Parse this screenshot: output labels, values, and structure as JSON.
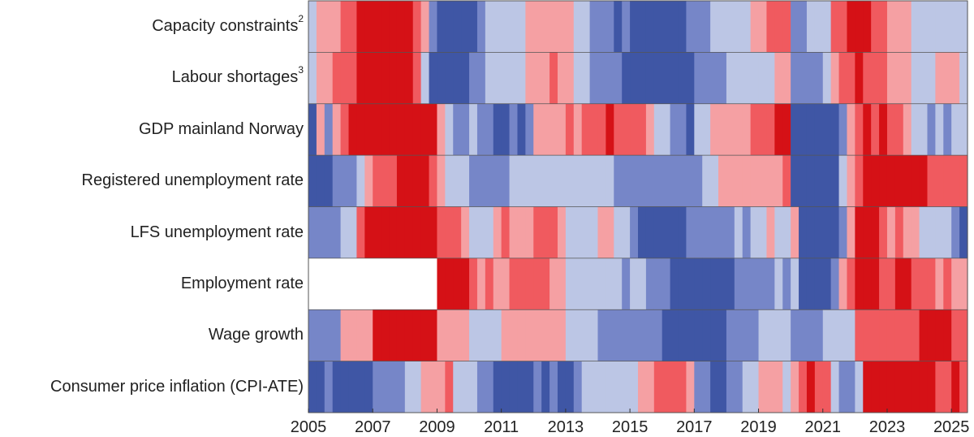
{
  "chart_data": {
    "type": "heatmap",
    "title": "",
    "x_start": "2005Q1",
    "x_end": "2025Q2",
    "frequency": "quarterly",
    "x_tick_labels": [
      "2005",
      "2007",
      "2009",
      "2011",
      "2013",
      "2015",
      "2017",
      "2019",
      "2021",
      "2023",
      "2025"
    ],
    "scale_levels": [
      -3,
      -2,
      -1,
      1,
      2,
      3
    ],
    "level_colors": {
      "-3": "#3f56a5",
      "-2": "#7686c8",
      "-1": "#bcc6e5",
      "1": "#f5a0a3",
      "2": "#f05a5f",
      "3": "#d51116",
      "null": "#ffffff"
    },
    "rows": [
      {
        "label": "Capacity  constraints",
        "sup": "2",
        "values": [
          -1,
          1,
          1,
          1,
          2,
          2,
          3,
          3,
          3,
          3,
          3,
          3,
          3,
          2,
          1,
          -2,
          -3,
          -3,
          -3,
          -3,
          -3,
          -2,
          -1,
          -1,
          -1,
          -1,
          -1,
          1,
          1,
          1,
          1,
          1,
          1,
          -1,
          -1,
          -2,
          -2,
          -2,
          -3,
          -2,
          -3,
          -3,
          -3,
          -3,
          -3,
          -3,
          -3,
          -2,
          -2,
          -2,
          -1,
          -1,
          -1,
          -1,
          -1,
          1,
          1,
          2,
          2,
          2,
          -2,
          -2,
          -1,
          -1,
          -1,
          2,
          2,
          3,
          3,
          3,
          2,
          2,
          1,
          1,
          1,
          -1,
          -1,
          -1,
          -1,
          -1,
          -1,
          -1
        ]
      },
      {
        "label": "Labour  shortages",
        "sup": "3",
        "values": [
          -1,
          1,
          1,
          2,
          2,
          2,
          3,
          3,
          3,
          3,
          3,
          3,
          3,
          2,
          -1,
          -3,
          -3,
          -3,
          -3,
          -3,
          -2,
          -2,
          -1,
          -1,
          -1,
          -1,
          -1,
          1,
          1,
          1,
          2,
          1,
          1,
          -1,
          -1,
          -2,
          -2,
          -2,
          -2,
          -3,
          -3,
          -3,
          -3,
          -3,
          -3,
          -3,
          -3,
          -3,
          -2,
          -2,
          -2,
          -2,
          -1,
          -1,
          -1,
          -1,
          -1,
          -1,
          1,
          1,
          -2,
          -2,
          -2,
          -2,
          -1,
          1,
          2,
          2,
          3,
          2,
          2,
          2,
          1,
          1,
          1,
          -1,
          -1,
          -1,
          1,
          1,
          1,
          -1
        ]
      },
      {
        "label": "GDP mainland Norway",
        "sup": "",
        "values": [
          -3,
          1,
          -2,
          1,
          2,
          3,
          3,
          3,
          3,
          3,
          3,
          3,
          3,
          3,
          3,
          3,
          1,
          -1,
          -2,
          -2,
          -1,
          -2,
          -2,
          -3,
          -3,
          -2,
          -3,
          -2,
          1,
          1,
          1,
          1,
          2,
          1,
          2,
          2,
          2,
          3,
          2,
          2,
          2,
          2,
          1,
          -1,
          -1,
          -2,
          -2,
          -3,
          -1,
          -1,
          1,
          1,
          1,
          1,
          1,
          2,
          2,
          2,
          3,
          3,
          -3,
          -3,
          -3,
          -3,
          -3,
          -3,
          -2,
          1,
          2,
          3,
          2,
          3,
          2,
          2,
          1,
          -1,
          -1,
          -2,
          -1,
          -2,
          -1,
          -1
        ]
      },
      {
        "label": "Registered unemployment rate",
        "sup": "",
        "values": [
          -3,
          -3,
          -3,
          -2,
          -2,
          -2,
          -1,
          1,
          2,
          2,
          2,
          3,
          3,
          3,
          3,
          2,
          1,
          -1,
          -1,
          -1,
          -2,
          -2,
          -2,
          -2,
          -2,
          -1,
          -1,
          -1,
          -1,
          -1,
          -1,
          -1,
          -1,
          -1,
          -1,
          -1,
          -1,
          -1,
          -2,
          -2,
          -2,
          -2,
          -2,
          -2,
          -2,
          -2,
          -2,
          -2,
          -2,
          -1,
          -1,
          1,
          1,
          1,
          1,
          1,
          1,
          1,
          1,
          2,
          -3,
          -3,
          -3,
          -3,
          -3,
          -3,
          -1,
          1,
          2,
          3,
          3,
          3,
          3,
          3,
          3,
          3,
          3,
          2,
          2,
          2,
          2,
          2
        ]
      },
      {
        "label": "LFS unemployment rate",
        "sup": "",
        "values": [
          -2,
          -2,
          -2,
          -2,
          -1,
          -1,
          2,
          3,
          3,
          3,
          3,
          3,
          3,
          3,
          3,
          3,
          2,
          2,
          2,
          1,
          -1,
          -1,
          -1,
          1,
          2,
          1,
          1,
          1,
          2,
          2,
          2,
          1,
          -1,
          -1,
          -1,
          -1,
          1,
          1,
          -1,
          -1,
          -2,
          -3,
          -3,
          -3,
          -3,
          -3,
          -3,
          -2,
          -2,
          -2,
          -2,
          -2,
          -2,
          -1,
          -2,
          -1,
          -1,
          1,
          -1,
          -1,
          1,
          -3,
          -3,
          -3,
          -3,
          -3,
          -2,
          1,
          3,
          3,
          3,
          2,
          1,
          2,
          1,
          1,
          -1,
          -1,
          -1,
          -1,
          -2,
          -3
        ]
      },
      {
        "label": "Employment rate",
        "sup": "",
        "values": [
          null,
          null,
          null,
          null,
          null,
          null,
          null,
          null,
          null,
          null,
          null,
          null,
          null,
          null,
          null,
          null,
          3,
          3,
          3,
          3,
          2,
          1,
          2,
          1,
          1,
          2,
          2,
          2,
          2,
          2,
          1,
          1,
          -1,
          -1,
          -1,
          -1,
          -1,
          -1,
          -1,
          -2,
          -1,
          -1,
          -2,
          -2,
          -2,
          -3,
          -3,
          -3,
          -3,
          -3,
          -3,
          -3,
          -3,
          -2,
          -2,
          -2,
          -2,
          -2,
          -1,
          -2,
          -1,
          -3,
          -3,
          -3,
          -3,
          -2,
          1,
          2,
          3,
          3,
          3,
          2,
          2,
          3,
          3,
          2,
          2,
          2,
          1,
          2,
          1,
          1
        ]
      },
      {
        "label": "Wage growth",
        "sup": "",
        "values": [
          -2,
          -2,
          -2,
          -2,
          1,
          1,
          1,
          1,
          3,
          3,
          3,
          3,
          3,
          3,
          3,
          3,
          1,
          1,
          1,
          1,
          -1,
          -1,
          -1,
          -1,
          1,
          1,
          1,
          1,
          1,
          1,
          1,
          1,
          -1,
          -1,
          -1,
          -1,
          -2,
          -2,
          -2,
          -2,
          -2,
          -2,
          -2,
          -2,
          -3,
          -3,
          -3,
          -3,
          -3,
          -3,
          -3,
          -3,
          -2,
          -2,
          -2,
          -2,
          -1,
          -1,
          -1,
          -1,
          -2,
          -2,
          -2,
          -2,
          -1,
          -1,
          -1,
          -1,
          2,
          2,
          2,
          2,
          2,
          2,
          2,
          2,
          3,
          3,
          3,
          3,
          2,
          2
        ]
      },
      {
        "label": "Consumer price inflation (CPI-ATE)",
        "sup": "",
        "values": [
          -3,
          -3,
          -2,
          -3,
          -3,
          -3,
          -3,
          -3,
          -2,
          -2,
          -2,
          -2,
          -1,
          -1,
          1,
          1,
          1,
          2,
          -1,
          -1,
          -1,
          -2,
          -2,
          -3,
          -3,
          -3,
          -3,
          -3,
          -2,
          -3,
          -2,
          -3,
          -3,
          -2,
          -1,
          -1,
          -1,
          -1,
          -1,
          -1,
          -1,
          1,
          1,
          2,
          2,
          2,
          2,
          1,
          -2,
          -2,
          -3,
          -3,
          -2,
          -2,
          -1,
          -1,
          1,
          1,
          1,
          -1,
          1,
          2,
          3,
          2,
          2,
          -1,
          -2,
          -2,
          -1,
          3,
          3,
          3,
          3,
          3,
          3,
          3,
          3,
          3,
          2,
          2,
          3,
          2
        ]
      }
    ]
  }
}
